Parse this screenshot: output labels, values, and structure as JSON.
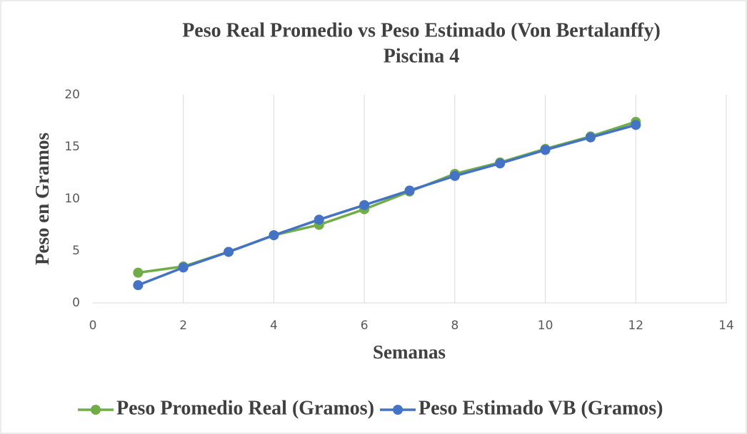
{
  "chart_data": {
    "type": "line",
    "title": "Peso Real Promedio vs Peso Estimado (Von Bertalanffy)",
    "subtitle": "Piscina 4",
    "x_label": "Semanas",
    "y_label": "Peso en Gramos",
    "x": [
      1,
      2,
      3,
      4,
      5,
      6,
      7,
      8,
      9,
      10,
      11,
      12
    ],
    "series": [
      {
        "name": "Peso Promedio Real (Gramos)",
        "color": "#70ad47",
        "values": [
          2.9,
          3.5,
          4.9,
          6.5,
          7.5,
          9.0,
          10.7,
          12.4,
          13.5,
          14.8,
          16.0,
          17.4
        ]
      },
      {
        "name": "Peso Estimado VB (Gramos)",
        "color": "#4472c4",
        "values": [
          1.7,
          3.4,
          4.9,
          6.5,
          8.0,
          9.4,
          10.8,
          12.2,
          13.4,
          14.7,
          15.9,
          17.1
        ]
      }
    ],
    "xlim": [
      0,
      14
    ],
    "xticks": [
      0,
      2,
      4,
      6,
      8,
      10,
      12,
      14
    ],
    "ylim": [
      0,
      20
    ],
    "yticks": [
      0,
      5,
      10,
      15,
      20
    ],
    "grid": "x",
    "legend": "bottom"
  }
}
